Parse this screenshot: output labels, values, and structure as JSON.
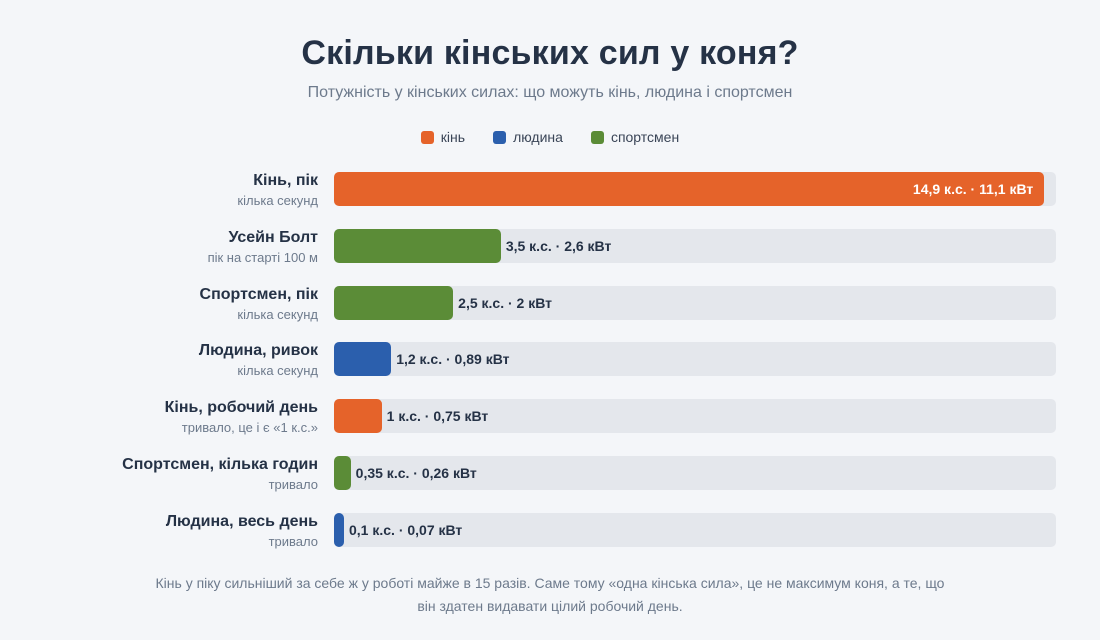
{
  "title": "Скільки кінських сил у коня?",
  "subtitle": "Потужність у кінських силах: що можуть кінь, людина і спортсмен",
  "legend": [
    {
      "label": "кінь",
      "color": "#e5632a"
    },
    {
      "label": "людина",
      "color": "#2b5fad"
    },
    {
      "label": "спортсмен",
      "color": "#5b8c37"
    }
  ],
  "footnote": "Кінь у піку сильніший за себе ж у роботі майже в 15 разів. Саме тому «одна кінська сила», це не максимум коня, а те, що він здатен видавати цілий робочий день.",
  "chart_data": {
    "type": "bar",
    "orientation": "horizontal",
    "xlim": [
      0,
      15
    ],
    "unit": "к.с.",
    "categories": [
      "Кінь, пік",
      "Усейн Болт",
      "Спортсмен, пік",
      "Людина, ривок",
      "Кінь, робочий день",
      "Спортсмен, кілька годин",
      "Людина, весь день"
    ],
    "notes": [
      "кілька секунд",
      "пік на старті 100 м",
      "кілька секунд",
      "кілька секунд",
      "тривало, це і є «1 к.с.»",
      "тривало",
      "тривало"
    ],
    "groups": [
      "кінь",
      "спортсмен",
      "спортсмен",
      "людина",
      "кінь",
      "спортсмен",
      "людина"
    ],
    "values": [
      14.9,
      3.5,
      2.5,
      1.2,
      1,
      0.35,
      0.1
    ],
    "value_labels": [
      "14,9 к.с. · 11,1 кВт",
      "3,5 к.с. · 2,6 кВт",
      "2,5 к.с. · 2 кВт",
      "1,2 к.с. · 0,89 кВт",
      "1 к.с. · 0,75 кВт",
      "0,35 к.с. · 0,26 кВт",
      "0,1 к.с. · 0,07 кВт"
    ]
  }
}
